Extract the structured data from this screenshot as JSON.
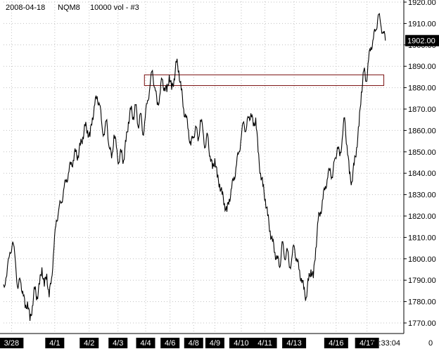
{
  "header": {
    "date": "2008-04-18",
    "symbol": "NQM8",
    "bar_spec": "10000 vol - #3"
  },
  "current_price": {
    "label": "1902.00",
    "value": 1902.0
  },
  "time_readout": "11:33:04",
  "volume_readout": "0",
  "colors": {
    "background": "#ffffff",
    "price_line": "#000000",
    "grid": "#c0c0c0",
    "zone_border": "#7a1010",
    "label_box": "#000000"
  },
  "chart_data": {
    "type": "line",
    "title": "2008-04-18  NQM8  10000 vol - #3",
    "xlabel": "",
    "ylabel": "",
    "ylim": [
      1765,
      1920
    ],
    "grid": true,
    "y_ticks": [
      1770,
      1780,
      1790,
      1800,
      1810,
      1820,
      1830,
      1840,
      1850,
      1860,
      1870,
      1880,
      1890,
      1900,
      1910,
      1920
    ],
    "y_tick_labels": [
      "1770.00",
      "1780.00",
      "1790.00",
      "1800.00",
      "1810.00",
      "1820.00",
      "1830.00",
      "1840.00",
      "1850.00",
      "1860.00",
      "1870.00",
      "1880.00",
      "1890.00",
      "1900.00",
      "1910.00",
      "1920.00"
    ],
    "x_range": [
      0,
      100
    ],
    "x_ticks": [
      {
        "label": "3/28",
        "x": 2.0
      },
      {
        "label": "4/1",
        "x": 12.8
      },
      {
        "label": "4/2",
        "x": 21.4
      },
      {
        "label": "4/3",
        "x": 28.6
      },
      {
        "label": "4/4",
        "x": 35.5
      },
      {
        "label": "4/6",
        "x": 41.6
      },
      {
        "label": "4/8",
        "x": 47.5
      },
      {
        "label": "4/9",
        "x": 52.8
      },
      {
        "label": "4/10",
        "x": 59.4
      },
      {
        "label": "4/11",
        "x": 65.3
      },
      {
        "label": "4/13",
        "x": 72.6
      },
      {
        "label": "4/16",
        "x": 83.1
      },
      {
        "label": "4/17",
        "x": 90.8
      }
    ],
    "series": [
      {
        "values": [
          [
            0.0,
            1788
          ],
          [
            0.8,
            1792
          ],
          [
            1.6,
            1803
          ],
          [
            2.3,
            1808
          ],
          [
            3.0,
            1798
          ],
          [
            3.6,
            1786
          ],
          [
            4.2,
            1790
          ],
          [
            4.8,
            1785
          ],
          [
            5.4,
            1777
          ],
          [
            6.0,
            1780
          ],
          [
            6.6,
            1771
          ],
          [
            7.2,
            1778
          ],
          [
            7.8,
            1786
          ],
          [
            8.4,
            1782
          ],
          [
            9.0,
            1788
          ],
          [
            9.6,
            1796
          ],
          [
            10.2,
            1787
          ],
          [
            10.8,
            1793
          ],
          [
            11.4,
            1782
          ],
          [
            12.0,
            1791
          ],
          [
            12.6,
            1805
          ],
          [
            13.2,
            1818
          ],
          [
            13.8,
            1823
          ],
          [
            14.4,
            1826
          ],
          [
            15.0,
            1832
          ],
          [
            15.6,
            1836
          ],
          [
            16.2,
            1840
          ],
          [
            16.8,
            1844
          ],
          [
            17.4,
            1846
          ],
          [
            18.0,
            1850
          ],
          [
            18.6,
            1848
          ],
          [
            19.2,
            1853
          ],
          [
            19.8,
            1857
          ],
          [
            20.4,
            1862
          ],
          [
            21.0,
            1860
          ],
          [
            21.6,
            1857
          ],
          [
            22.2,
            1866
          ],
          [
            22.8,
            1872
          ],
          [
            23.4,
            1876
          ],
          [
            24.0,
            1872
          ],
          [
            24.6,
            1862
          ],
          [
            25.2,
            1858
          ],
          [
            25.8,
            1865
          ],
          [
            26.4,
            1852
          ],
          [
            27.0,
            1847
          ],
          [
            27.6,
            1858
          ],
          [
            28.2,
            1852
          ],
          [
            28.8,
            1845
          ],
          [
            29.4,
            1850
          ],
          [
            30.0,
            1846
          ],
          [
            30.6,
            1855
          ],
          [
            31.2,
            1864
          ],
          [
            31.8,
            1870
          ],
          [
            32.4,
            1866
          ],
          [
            33.0,
            1872
          ],
          [
            33.6,
            1862
          ],
          [
            34.2,
            1868
          ],
          [
            34.8,
            1858
          ],
          [
            35.4,
            1866
          ],
          [
            36.0,
            1874
          ],
          [
            36.6,
            1881
          ],
          [
            37.2,
            1888
          ],
          [
            37.8,
            1880
          ],
          [
            38.4,
            1872
          ],
          [
            39.0,
            1876
          ],
          [
            39.6,
            1884
          ],
          [
            40.2,
            1880
          ],
          [
            40.8,
            1878
          ],
          [
            41.4,
            1886
          ],
          [
            42.0,
            1879
          ],
          [
            42.6,
            1884
          ],
          [
            43.2,
            1892
          ],
          [
            43.8,
            1888
          ],
          [
            44.4,
            1879
          ],
          [
            45.0,
            1870
          ],
          [
            45.6,
            1866
          ],
          [
            46.2,
            1860
          ],
          [
            46.8,
            1853
          ],
          [
            47.4,
            1857
          ],
          [
            48.0,
            1862
          ],
          [
            48.6,
            1855
          ],
          [
            49.2,
            1865
          ],
          [
            49.8,
            1860
          ],
          [
            50.4,
            1852
          ],
          [
            51.0,
            1858
          ],
          [
            51.6,
            1848
          ],
          [
            52.2,
            1842
          ],
          [
            52.8,
            1847
          ],
          [
            53.4,
            1838
          ],
          [
            54.0,
            1835
          ],
          [
            54.6,
            1830
          ],
          [
            55.2,
            1826
          ],
          [
            55.8,
            1822
          ],
          [
            56.4,
            1828
          ],
          [
            57.0,
            1833
          ],
          [
            57.6,
            1838
          ],
          [
            58.2,
            1844
          ],
          [
            58.8,
            1850
          ],
          [
            59.4,
            1857
          ],
          [
            60.0,
            1864
          ],
          [
            60.6,
            1860
          ],
          [
            61.2,
            1866
          ],
          [
            61.8,
            1868
          ],
          [
            62.4,
            1862
          ],
          [
            63.0,
            1866
          ],
          [
            63.6,
            1850
          ],
          [
            64.2,
            1840
          ],
          [
            64.8,
            1834
          ],
          [
            65.4,
            1828
          ],
          [
            66.0,
            1820
          ],
          [
            66.6,
            1813
          ],
          [
            67.2,
            1808
          ],
          [
            67.8,
            1803
          ],
          [
            68.4,
            1800
          ],
          [
            69.0,
            1796
          ],
          [
            69.6,
            1808
          ],
          [
            70.2,
            1800
          ],
          [
            70.8,
            1805
          ],
          [
            71.4,
            1796
          ],
          [
            72.0,
            1800
          ],
          [
            72.6,
            1806
          ],
          [
            73.2,
            1800
          ],
          [
            73.8,
            1795
          ],
          [
            74.4,
            1791
          ],
          [
            75.0,
            1786
          ],
          [
            75.6,
            1782
          ],
          [
            76.2,
            1790
          ],
          [
            76.8,
            1795
          ],
          [
            77.4,
            1791
          ],
          [
            78.0,
            1805
          ],
          [
            78.6,
            1818
          ],
          [
            79.2,
            1822
          ],
          [
            79.8,
            1828
          ],
          [
            80.4,
            1834
          ],
          [
            81.0,
            1838
          ],
          [
            81.6,
            1842
          ],
          [
            82.2,
            1838
          ],
          [
            82.8,
            1847
          ],
          [
            83.4,
            1852
          ],
          [
            84.0,
            1848
          ],
          [
            84.6,
            1856
          ],
          [
            85.2,
            1866
          ],
          [
            85.8,
            1853
          ],
          [
            86.4,
            1840
          ],
          [
            87.0,
            1836
          ],
          [
            87.6,
            1844
          ],
          [
            88.2,
            1852
          ],
          [
            88.8,
            1862
          ],
          [
            89.4,
            1878
          ],
          [
            90.0,
            1888
          ],
          [
            90.6,
            1883
          ],
          [
            91.2,
            1893
          ],
          [
            91.8,
            1899
          ],
          [
            92.4,
            1903
          ],
          [
            93.0,
            1907
          ],
          [
            93.6,
            1914
          ],
          [
            94.2,
            1910
          ],
          [
            94.8,
            1906
          ],
          [
            95.4,
            1902
          ]
        ]
      }
    ],
    "zone": {
      "x_start": 35.2,
      "x_end": 95.0,
      "y_low": 1881,
      "y_high": 1886
    }
  }
}
